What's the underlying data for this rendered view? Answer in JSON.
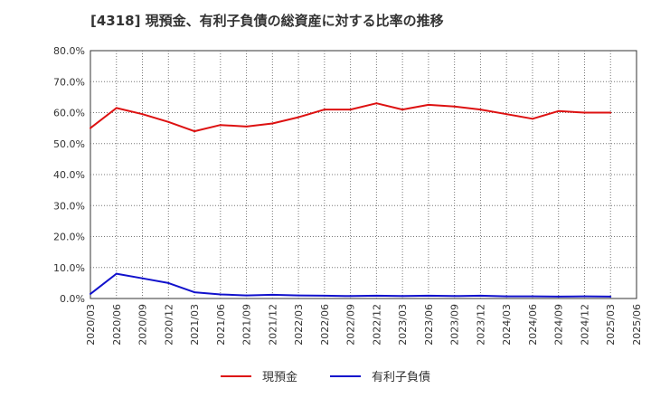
{
  "chart_data": {
    "type": "line",
    "title": "[4318]  現預金、有利子負債の総資産に対する比率の推移",
    "x": [
      "2020/03",
      "2020/06",
      "2020/09",
      "2020/12",
      "2021/03",
      "2021/06",
      "2021/09",
      "2021/12",
      "2022/03",
      "2022/06",
      "2022/09",
      "2022/12",
      "2023/03",
      "2023/06",
      "2023/09",
      "2023/12",
      "2024/03",
      "2024/06",
      "2024/09",
      "2024/12",
      "2025/03",
      "2025/06"
    ],
    "y_ticks": [
      "0.0%",
      "10.0%",
      "20.0%",
      "30.0%",
      "40.0%",
      "50.0%",
      "60.0%",
      "70.0%",
      "80.0%"
    ],
    "ylim": [
      0,
      80
    ],
    "xlabel": "",
    "ylabel": "",
    "series": [
      {
        "name": "現預金",
        "color": "#dd1111",
        "values": [
          55.0,
          61.5,
          59.5,
          57.0,
          54.0,
          56.0,
          55.5,
          56.5,
          58.5,
          61.0,
          61.0,
          63.0,
          61.0,
          62.5,
          62.0,
          61.0,
          59.5,
          58.0,
          60.5,
          60.0,
          60.0,
          null
        ]
      },
      {
        "name": "有利子負債",
        "color": "#1111cc",
        "values": [
          1.5,
          8.0,
          6.5,
          5.0,
          2.0,
          1.3,
          1.0,
          1.2,
          1.0,
          0.9,
          0.8,
          0.9,
          0.8,
          0.9,
          0.8,
          0.9,
          0.7,
          0.7,
          0.6,
          0.7,
          0.6,
          null
        ]
      }
    ]
  }
}
